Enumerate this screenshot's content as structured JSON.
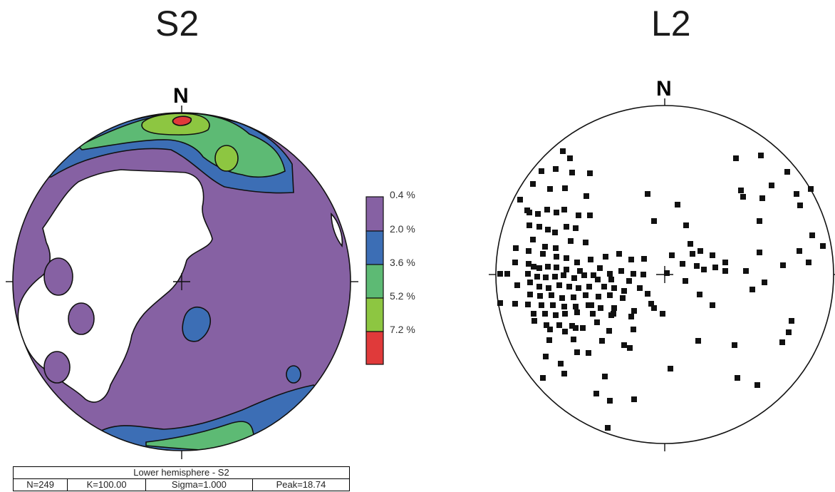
{
  "left_plot": {
    "title": "S2",
    "north_label": "N",
    "legend": {
      "levels": [
        {
          "label": "0.4 %",
          "color": "#8661a3"
        },
        {
          "label": "2.0 %",
          "color": "#3c6eb5"
        },
        {
          "label": "3.6 %",
          "color": "#5dba74"
        },
        {
          "label": "5.2 %",
          "color": "#8dc641"
        },
        {
          "label": "7.2 %",
          "color": "#e03a3a"
        }
      ]
    },
    "stats": {
      "header": "Lower hemisphere - S2",
      "n": "N=249",
      "k": "K=100.00",
      "sigma": "Sigma=1.000",
      "peak": "Peak=18.74"
    }
  },
  "right_plot": {
    "title": "L2",
    "north_label": "N"
  }
}
